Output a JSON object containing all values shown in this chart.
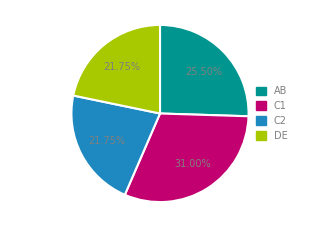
{
  "labels": [
    "AB",
    "C1",
    "C2",
    "DE"
  ],
  "values": [
    25.5,
    31.0,
    21.75,
    21.75
  ],
  "colors": [
    "#00968F",
    "#C2006F",
    "#1E88C0",
    "#A8C800"
  ],
  "startangle": 90,
  "counterclock": false,
  "legend_labels": [
    "AB",
    "C1",
    "C2",
    "DE"
  ],
  "text_color": "#808080",
  "figsize": [
    3.2,
    2.27
  ],
  "dpi": 100
}
